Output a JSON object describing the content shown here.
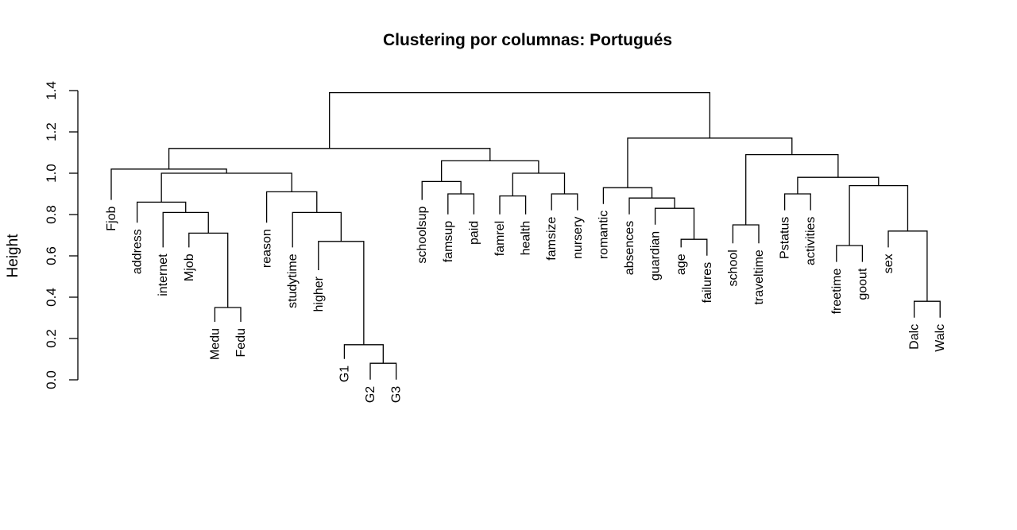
{
  "chart_data": {
    "type": "dendrogram",
    "title": "Clustering por columnas: Portugués",
    "xlabel": "",
    "ylabel": "Height",
    "ylim": [
      0,
      1.4
    ],
    "yticks": [
      "0.0",
      "0.2",
      "0.4",
      "0.6",
      "0.8",
      "1.0",
      "1.2",
      "1.4"
    ],
    "leaf_order": [
      "Fjob",
      "address",
      "internet",
      "Mjob",
      "Medu",
      "Fedu",
      "reason",
      "studytime",
      "higher",
      "G1",
      "G2",
      "G3",
      "schoolsup",
      "famsup",
      "paid",
      "famrel",
      "health",
      "famsize",
      "nursery",
      "romantic",
      "absences",
      "guardian",
      "age",
      "failures",
      "school",
      "traveltime",
      "Pstatus",
      "activities",
      "freetime",
      "goout",
      "sex",
      "Dalc",
      "Walc"
    ],
    "leaf_label_heights": [
      0.84,
      0.73,
      0.61,
      0.61,
      0.25,
      0.25,
      0.73,
      0.61,
      0.5,
      0.07,
      -0.03,
      -0.03,
      0.84,
      0.77,
      0.77,
      0.77,
      0.77,
      0.79,
      0.79,
      0.82,
      0.77,
      0.72,
      0.61,
      0.57,
      0.63,
      0.63,
      0.79,
      0.79,
      0.54,
      0.54,
      0.61,
      0.27,
      0.27
    ],
    "merges": [
      {
        "left": "Medu",
        "right": "Fedu",
        "height": 0.35
      },
      {
        "left": "G2",
        "right": "G3",
        "height": 0.08
      },
      {
        "left": "G1",
        "right": [
          "G2",
          "G3"
        ],
        "height": 0.17
      },
      {
        "left": "higher",
        "right": [
          "G1",
          "G2",
          "G3"
        ],
        "height": 0.67
      },
      {
        "left": "studytime",
        "right": [
          "higher",
          "G1",
          "G2",
          "G3"
        ],
        "height": 0.81
      },
      {
        "left": "reason",
        "right": [
          "studytime",
          "higher",
          "G1",
          "G2",
          "G3"
        ],
        "height": 0.91
      },
      {
        "left": "Mjob",
        "right": [
          "Medu",
          "Fedu"
        ],
        "height": 0.71
      },
      {
        "left": "internet",
        "right": [
          "Mjob",
          "Medu",
          "Fedu"
        ],
        "height": 0.81
      },
      {
        "left": "address",
        "right": [
          "internet",
          "Mjob",
          "Medu",
          "Fedu"
        ],
        "height": 0.86
      },
      {
        "left": [
          "address",
          "internet",
          "Mjob",
          "Medu",
          "Fedu"
        ],
        "right": [
          "reason",
          "studytime",
          "higher",
          "G1",
          "G2",
          "G3"
        ],
        "height": 1.0
      },
      {
        "left": "Fjob",
        "right": [
          "address",
          "internet",
          "Mjob",
          "Medu",
          "Fedu",
          "reason",
          "studytime",
          "higher",
          "G1",
          "G2",
          "G3"
        ],
        "height": 1.02
      },
      {
        "left": "famsup",
        "right": "paid",
        "height": 0.9
      },
      {
        "left": "schoolsup",
        "right": [
          "famsup",
          "paid"
        ],
        "height": 0.96
      },
      {
        "left": "famrel",
        "right": "health",
        "height": 0.89
      },
      {
        "left": "famsize",
        "right": "nursery",
        "height": 0.9
      },
      {
        "left": [
          "famrel",
          "health"
        ],
        "right": [
          "famsize",
          "nursery"
        ],
        "height": 1.0
      },
      {
        "left": [
          "schoolsup",
          "famsup",
          "paid"
        ],
        "right": [
          "famrel",
          "health",
          "famsize",
          "nursery"
        ],
        "height": 1.06
      },
      {
        "left": [
          "Fjob",
          "address",
          "internet",
          "Mjob",
          "Medu",
          "Fedu",
          "reason",
          "studytime",
          "higher",
          "G1",
          "G2",
          "G3"
        ],
        "right": [
          "schoolsup",
          "famsup",
          "paid",
          "famrel",
          "health",
          "famsize",
          "nursery"
        ],
        "height": 1.12
      },
      {
        "left": "age",
        "right": "failures",
        "height": 0.68
      },
      {
        "left": "guardian",
        "right": [
          "age",
          "failures"
        ],
        "height": 0.83
      },
      {
        "left": "absences",
        "right": [
          "guardian",
          "age",
          "failures"
        ],
        "height": 0.88
      },
      {
        "left": "romantic",
        "right": [
          "absences",
          "guardian",
          "age",
          "failures"
        ],
        "height": 0.93
      },
      {
        "left": "school",
        "right": "traveltime",
        "height": 0.75
      },
      {
        "left": "Pstatus",
        "right": "activities",
        "height": 0.9
      },
      {
        "left": "freetime",
        "right": "goout",
        "height": 0.65
      },
      {
        "left": "Dalc",
        "right": "Walc",
        "height": 0.38
      },
      {
        "left": "sex",
        "right": [
          "Dalc",
          "Walc"
        ],
        "height": 0.72
      },
      {
        "left": [
          "freetime",
          "goout"
        ],
        "right": [
          "sex",
          "Dalc",
          "Walc"
        ],
        "height": 0.94
      },
      {
        "left": [
          "Pstatus",
          "activities"
        ],
        "right": [
          "freetime",
          "goout",
          "sex",
          "Dalc",
          "Walc"
        ],
        "height": 0.98
      },
      {
        "left": [
          "school",
          "traveltime"
        ],
        "right": [
          "Pstatus",
          "activities",
          "freetime",
          "goout",
          "sex",
          "Dalc",
          "Walc"
        ],
        "height": 1.09
      },
      {
        "left": [
          "romantic",
          "absences",
          "guardian",
          "age",
          "failures"
        ],
        "right": [
          "school",
          "traveltime",
          "Pstatus",
          "activities",
          "freetime",
          "goout",
          "sex",
          "Dalc",
          "Walc"
        ],
        "height": 1.17
      },
      {
        "left": [
          "Fjob",
          "address",
          "internet",
          "Mjob",
          "Medu",
          "Fedu",
          "reason",
          "studytime",
          "higher",
          "G1",
          "G2",
          "G3",
          "schoolsup",
          "famsup",
          "paid",
          "famrel",
          "health",
          "famsize",
          "nursery"
        ],
        "right": [
          "romantic",
          "absences",
          "guardian",
          "age",
          "failures",
          "school",
          "traveltime",
          "Pstatus",
          "activities",
          "freetime",
          "goout",
          "sex",
          "Dalc",
          "Walc"
        ],
        "height": 1.39
      }
    ]
  }
}
